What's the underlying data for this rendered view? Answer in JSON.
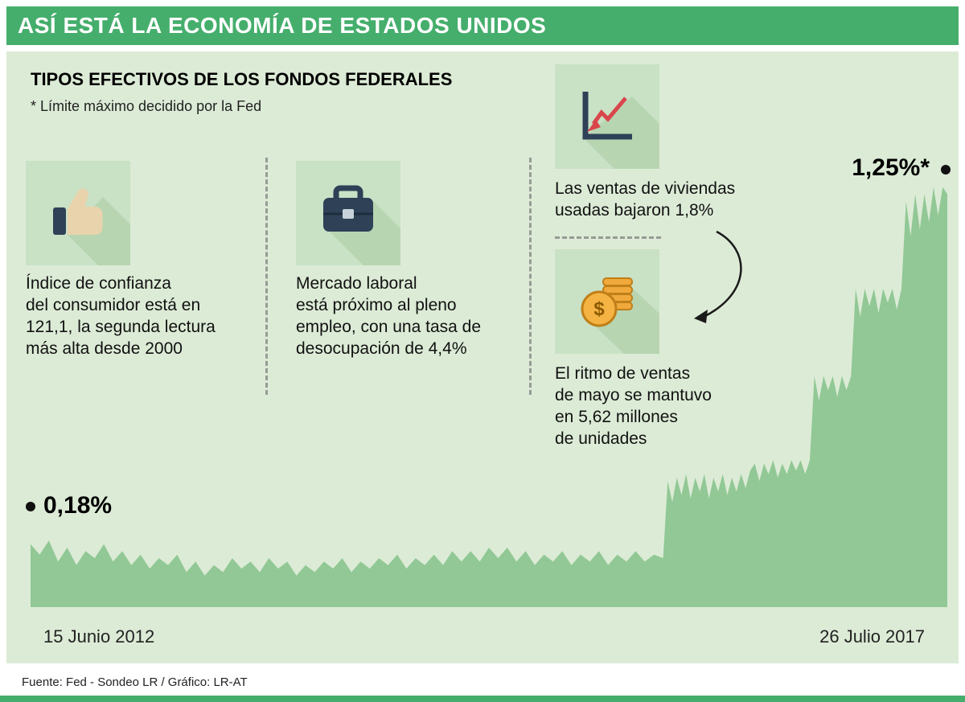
{
  "header": {
    "title": "ASÍ ESTÁ LA ECONOMÍA DE ESTADOS UNIDOS"
  },
  "section": {
    "title": "TIPOS EFECTIVOS DE LOS FONDOS FEDERALES",
    "note": "* Límite máximo decidido por la Fed"
  },
  "facts": [
    {
      "icon": "thumbs-up-icon",
      "text": "Índice de confianza\ndel consumidor está en\n121,1, la segunda lectura\nmás alta desde 2000"
    },
    {
      "icon": "briefcase-icon",
      "text": "Mercado laboral\nestá próximo al pleno\nempleo, con una tasa de\ndesocupación de 4,4%"
    },
    {
      "icon": "chart-down-icon",
      "text": "Las ventas de viviendas\nusadas bajaron 1,8%"
    },
    {
      "icon": "coins-icon",
      "text": "El ritmo de ventas\nde mayo se mantuvo\nen 5,62 millones\nde unidades"
    }
  ],
  "colors": {
    "header_bg": "#45ae6c",
    "panel_bg": "#dcebd6",
    "tile_bg": "#c9e1c5",
    "tile_shadow": "#b7d5b1",
    "chart_fill": "#91c895",
    "accent_red": "#d9464b",
    "icon_navy": "#2e4157",
    "coin_gold": "#f0a93c"
  },
  "chart_data": {
    "type": "area",
    "series_name": "Tipo efectivo de los fondos federales",
    "title": "TIPOS EFECTIVOS DE LOS FONDOS FEDERALES",
    "note": "* Límite máximo decidido por la Fed",
    "unit": "%",
    "ylim": [
      0,
      1.25
    ],
    "start_label": "0,18%",
    "end_label": "1,25%*",
    "start_value": 0.18,
    "end_value": 1.25,
    "x_start_label": "15 Junio 2012",
    "x_end_label": "26 Julio 2017",
    "fill_color": "#91c895",
    "points": [
      [
        0,
        0.18
      ],
      [
        0.01,
        0.15
      ],
      [
        0.02,
        0.19
      ],
      [
        0.03,
        0.13
      ],
      [
        0.04,
        0.17
      ],
      [
        0.05,
        0.12
      ],
      [
        0.06,
        0.16
      ],
      [
        0.07,
        0.14
      ],
      [
        0.08,
        0.18
      ],
      [
        0.09,
        0.13
      ],
      [
        0.1,
        0.16
      ],
      [
        0.11,
        0.12
      ],
      [
        0.12,
        0.15
      ],
      [
        0.13,
        0.11
      ],
      [
        0.14,
        0.14
      ],
      [
        0.15,
        0.12
      ],
      [
        0.16,
        0.15
      ],
      [
        0.17,
        0.1
      ],
      [
        0.18,
        0.13
      ],
      [
        0.19,
        0.09
      ],
      [
        0.2,
        0.12
      ],
      [
        0.21,
        0.1
      ],
      [
        0.22,
        0.14
      ],
      [
        0.23,
        0.11
      ],
      [
        0.24,
        0.13
      ],
      [
        0.25,
        0.1
      ],
      [
        0.26,
        0.14
      ],
      [
        0.27,
        0.11
      ],
      [
        0.28,
        0.13
      ],
      [
        0.29,
        0.09
      ],
      [
        0.3,
        0.12
      ],
      [
        0.31,
        0.1
      ],
      [
        0.32,
        0.13
      ],
      [
        0.33,
        0.11
      ],
      [
        0.34,
        0.14
      ],
      [
        0.35,
        0.1
      ],
      [
        0.36,
        0.13
      ],
      [
        0.37,
        0.11
      ],
      [
        0.38,
        0.14
      ],
      [
        0.39,
        0.12
      ],
      [
        0.4,
        0.15
      ],
      [
        0.41,
        0.11
      ],
      [
        0.42,
        0.14
      ],
      [
        0.43,
        0.12
      ],
      [
        0.44,
        0.15
      ],
      [
        0.45,
        0.12
      ],
      [
        0.46,
        0.16
      ],
      [
        0.47,
        0.13
      ],
      [
        0.48,
        0.16
      ],
      [
        0.49,
        0.13
      ],
      [
        0.5,
        0.17
      ],
      [
        0.51,
        0.14
      ],
      [
        0.52,
        0.17
      ],
      [
        0.53,
        0.13
      ],
      [
        0.54,
        0.16
      ],
      [
        0.55,
        0.12
      ],
      [
        0.56,
        0.15
      ],
      [
        0.57,
        0.13
      ],
      [
        0.58,
        0.16
      ],
      [
        0.59,
        0.12
      ],
      [
        0.6,
        0.15
      ],
      [
        0.61,
        0.13
      ],
      [
        0.62,
        0.16
      ],
      [
        0.63,
        0.12
      ],
      [
        0.64,
        0.15
      ],
      [
        0.65,
        0.13
      ],
      [
        0.66,
        0.16
      ],
      [
        0.67,
        0.13
      ],
      [
        0.68,
        0.15
      ],
      [
        0.69,
        0.14
      ],
      [
        0.695,
        0.36
      ],
      [
        0.7,
        0.3
      ],
      [
        0.705,
        0.37
      ],
      [
        0.71,
        0.32
      ],
      [
        0.715,
        0.38
      ],
      [
        0.72,
        0.31
      ],
      [
        0.725,
        0.37
      ],
      [
        0.73,
        0.33
      ],
      [
        0.735,
        0.38
      ],
      [
        0.74,
        0.31
      ],
      [
        0.745,
        0.37
      ],
      [
        0.75,
        0.33
      ],
      [
        0.755,
        0.38
      ],
      [
        0.76,
        0.32
      ],
      [
        0.765,
        0.37
      ],
      [
        0.77,
        0.33
      ],
      [
        0.775,
        0.38
      ],
      [
        0.78,
        0.34
      ],
      [
        0.785,
        0.39
      ],
      [
        0.79,
        0.41
      ],
      [
        0.795,
        0.36
      ],
      [
        0.8,
        0.41
      ],
      [
        0.805,
        0.38
      ],
      [
        0.81,
        0.42
      ],
      [
        0.815,
        0.37
      ],
      [
        0.82,
        0.41
      ],
      [
        0.825,
        0.38
      ],
      [
        0.83,
        0.42
      ],
      [
        0.835,
        0.39
      ],
      [
        0.84,
        0.42
      ],
      [
        0.845,
        0.38
      ],
      [
        0.85,
        0.42
      ],
      [
        0.855,
        0.66
      ],
      [
        0.86,
        0.59
      ],
      [
        0.865,
        0.66
      ],
      [
        0.87,
        0.62
      ],
      [
        0.875,
        0.66
      ],
      [
        0.88,
        0.6
      ],
      [
        0.885,
        0.66
      ],
      [
        0.89,
        0.62
      ],
      [
        0.895,
        0.66
      ],
      [
        0.9,
        0.91
      ],
      [
        0.905,
        0.83
      ],
      [
        0.91,
        0.91
      ],
      [
        0.915,
        0.86
      ],
      [
        0.92,
        0.91
      ],
      [
        0.925,
        0.84
      ],
      [
        0.93,
        0.91
      ],
      [
        0.935,
        0.87
      ],
      [
        0.94,
        0.91
      ],
      [
        0.945,
        0.85
      ],
      [
        0.95,
        0.91
      ],
      [
        0.955,
        1.16
      ],
      [
        0.96,
        1.06
      ],
      [
        0.965,
        1.18
      ],
      [
        0.97,
        1.08
      ],
      [
        0.975,
        1.18
      ],
      [
        0.98,
        1.1
      ],
      [
        0.985,
        1.2
      ],
      [
        0.99,
        1.12
      ],
      [
        0.995,
        1.2
      ],
      [
        1,
        1.18
      ]
    ]
  },
  "footer": {
    "source": "Fuente: Fed - Sondeo LR / Gráfico: LR-AT"
  }
}
